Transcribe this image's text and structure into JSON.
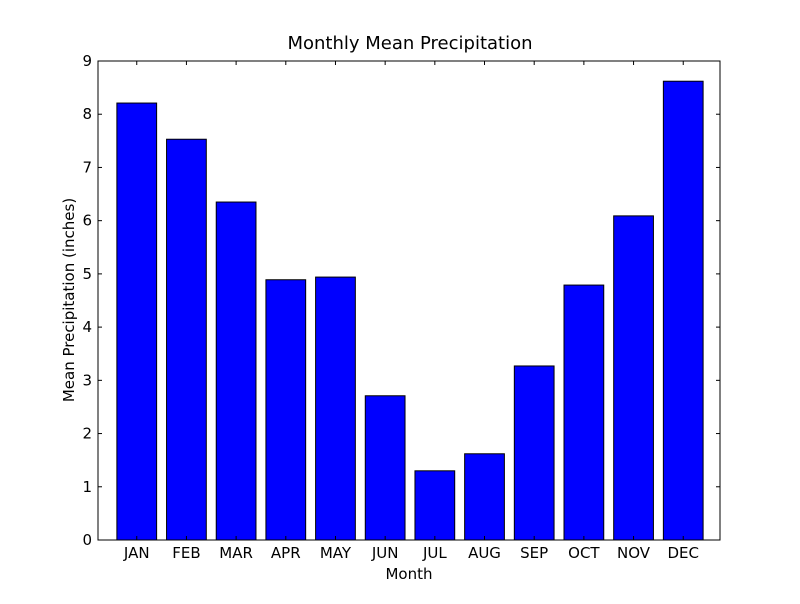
{
  "chart_data": {
    "type": "bar",
    "title": "Monthly Mean Precipitation",
    "xlabel": "Month",
    "ylabel": "Mean Precipitation (inches)",
    "categories": [
      "JAN",
      "FEB",
      "MAR",
      "APR",
      "MAY",
      "JUN",
      "JUL",
      "AUG",
      "SEP",
      "OCT",
      "NOV",
      "DEC"
    ],
    "values": [
      8.21,
      7.53,
      6.35,
      4.89,
      4.94,
      2.71,
      1.3,
      1.62,
      3.27,
      4.79,
      6.09,
      8.62
    ],
    "ylim": [
      0,
      9
    ],
    "yticks": [
      "0",
      "1",
      "2",
      "3",
      "4",
      "5",
      "6",
      "7",
      "8",
      "9"
    ],
    "grid": false,
    "bar_color": "#0000ff"
  }
}
